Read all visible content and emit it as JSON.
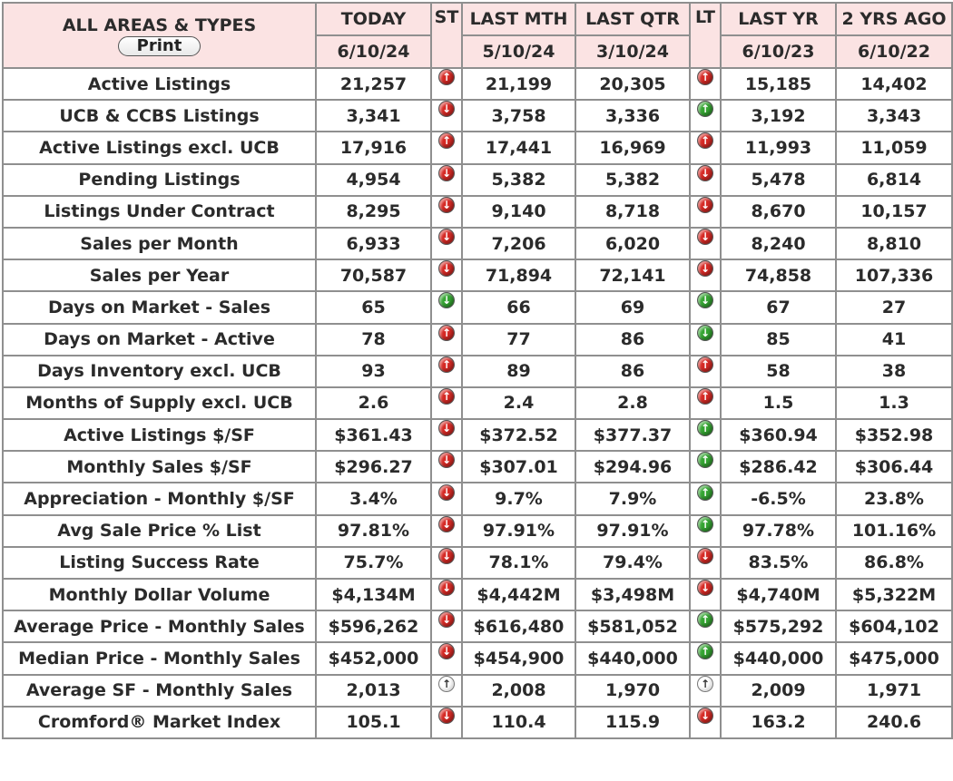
{
  "chart_data": {
    "type": "table",
    "header": {
      "label_col": "ALL AREAS & TYPES",
      "print_label": "Print",
      "today": {
        "label": "TODAY",
        "date": "6/10/24"
      },
      "st": "ST",
      "last_mth": {
        "label": "LAST MTH",
        "date": "5/10/24"
      },
      "last_qtr": {
        "label": "LAST QTR",
        "date": "3/10/24"
      },
      "lt": "LT",
      "last_yr": {
        "label": "LAST YR",
        "date": "6/10/23"
      },
      "two_yrs": {
        "label": "2 YRS AGO",
        "date": "6/10/22"
      }
    },
    "rows": [
      {
        "label": "Active Listings",
        "today": "21,257",
        "st": "up-red",
        "last_mth": "21,199",
        "last_qtr": "20,305",
        "lt": "up-red",
        "last_yr": "15,185",
        "two_yrs": "14,402"
      },
      {
        "label": "UCB & CCBS Listings",
        "today": "3,341",
        "st": "down-red",
        "last_mth": "3,758",
        "last_qtr": "3,336",
        "lt": "up-green",
        "last_yr": "3,192",
        "two_yrs": "3,343"
      },
      {
        "label": "Active Listings excl. UCB",
        "today": "17,916",
        "st": "up-red",
        "last_mth": "17,441",
        "last_qtr": "16,969",
        "lt": "up-red",
        "last_yr": "11,993",
        "two_yrs": "11,059"
      },
      {
        "label": "Pending Listings",
        "today": "4,954",
        "st": "down-red",
        "last_mth": "5,382",
        "last_qtr": "5,382",
        "lt": "down-red",
        "last_yr": "5,478",
        "two_yrs": "6,814"
      },
      {
        "label": "Listings Under Contract",
        "today": "8,295",
        "st": "down-red",
        "last_mth": "9,140",
        "last_qtr": "8,718",
        "lt": "down-red",
        "last_yr": "8,670",
        "two_yrs": "10,157"
      },
      {
        "label": "Sales per Month",
        "today": "6,933",
        "st": "down-red",
        "last_mth": "7,206",
        "last_qtr": "6,020",
        "lt": "down-red",
        "last_yr": "8,240",
        "two_yrs": "8,810"
      },
      {
        "label": "Sales per Year",
        "today": "70,587",
        "st": "down-red",
        "last_mth": "71,894",
        "last_qtr": "72,141",
        "lt": "down-red",
        "last_yr": "74,858",
        "two_yrs": "107,336"
      },
      {
        "label": "Days on Market - Sales",
        "today": "65",
        "st": "down-green",
        "last_mth": "66",
        "last_qtr": "69",
        "lt": "down-green",
        "last_yr": "67",
        "two_yrs": "27"
      },
      {
        "label": "Days on Market - Active",
        "today": "78",
        "st": "up-red",
        "last_mth": "77",
        "last_qtr": "86",
        "lt": "down-green",
        "last_yr": "85",
        "two_yrs": "41"
      },
      {
        "label": "Days Inventory excl. UCB",
        "today": "93",
        "st": "up-red",
        "last_mth": "89",
        "last_qtr": "86",
        "lt": "up-red",
        "last_yr": "58",
        "two_yrs": "38"
      },
      {
        "label": "Months of Supply excl. UCB",
        "today": "2.6",
        "st": "up-red",
        "last_mth": "2.4",
        "last_qtr": "2.8",
        "lt": "up-red",
        "last_yr": "1.5",
        "two_yrs": "1.3"
      },
      {
        "label": "Active Listings $/SF",
        "today": "$361.43",
        "st": "down-red",
        "last_mth": "$372.52",
        "last_qtr": "$377.37",
        "lt": "up-green",
        "last_yr": "$360.94",
        "two_yrs": "$352.98"
      },
      {
        "label": "Monthly Sales $/SF",
        "today": "$296.27",
        "st": "down-red",
        "last_mth": "$307.01",
        "last_qtr": "$294.96",
        "lt": "up-green",
        "last_yr": "$286.42",
        "two_yrs": "$306.44"
      },
      {
        "label": "Appreciation - Monthly $/SF",
        "today": "3.4%",
        "st": "down-red",
        "last_mth": "9.7%",
        "last_qtr": "7.9%",
        "lt": "up-green",
        "last_yr": "-6.5%",
        "two_yrs": "23.8%"
      },
      {
        "label": "Avg Sale Price % List",
        "today": "97.81%",
        "st": "down-red",
        "last_mth": "97.91%",
        "last_qtr": "97.91%",
        "lt": "up-green",
        "last_yr": "97.78%",
        "two_yrs": "101.16%"
      },
      {
        "label": "Listing Success Rate",
        "today": "75.7%",
        "st": "down-red",
        "last_mth": "78.1%",
        "last_qtr": "79.4%",
        "lt": "down-red",
        "last_yr": "83.5%",
        "two_yrs": "86.8%"
      },
      {
        "label": "Monthly Dollar Volume",
        "today": "$4,134M",
        "st": "down-red",
        "last_mth": "$4,442M",
        "last_qtr": "$3,498M",
        "lt": "down-red",
        "last_yr": "$4,740M",
        "two_yrs": "$5,322M"
      },
      {
        "label": "Average Price - Monthly Sales",
        "today": "$596,262",
        "st": "down-red",
        "last_mth": "$616,480",
        "last_qtr": "$581,052",
        "lt": "up-green",
        "last_yr": "$575,292",
        "two_yrs": "$604,102"
      },
      {
        "label": "Median Price - Monthly Sales",
        "today": "$452,000",
        "st": "down-red",
        "last_mth": "$454,900",
        "last_qtr": "$440,000",
        "lt": "up-green",
        "last_yr": "$440,000",
        "two_yrs": "$475,000"
      },
      {
        "label": "Average SF - Monthly Sales",
        "today": "2,013",
        "st": "up-neutral",
        "last_mth": "2,008",
        "last_qtr": "1,970",
        "lt": "up-neutral",
        "last_yr": "2,009",
        "two_yrs": "1,971"
      },
      {
        "label": "Cromford® Market Index",
        "today": "105.1",
        "st": "down-red",
        "last_mth": "110.4",
        "last_qtr": "115.9",
        "lt": "down-red",
        "last_yr": "163.2",
        "two_yrs": "240.6"
      }
    ]
  },
  "colors": {
    "header_bg": "#fbe3e3",
    "grid": "#8f8f8f",
    "arrow_red": "#d62a25",
    "arrow_green": "#35a532",
    "text": "#2b2b2b"
  },
  "icon_names": {
    "up-red": "up-arrow-red-icon",
    "down-red": "down-arrow-red-icon",
    "up-green": "up-arrow-green-icon",
    "down-green": "down-arrow-green-icon",
    "up-neutral": "up-arrow-neutral-icon"
  }
}
